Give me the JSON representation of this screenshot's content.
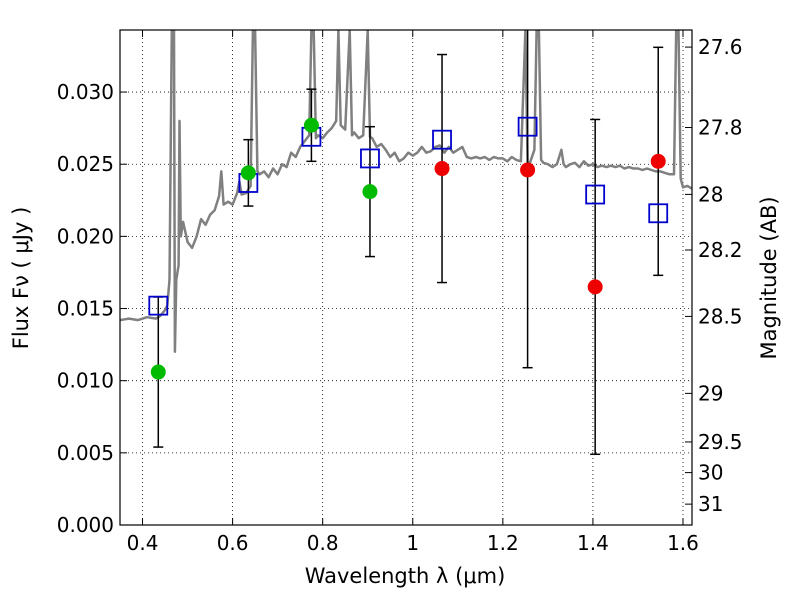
{
  "chart_data": {
    "type": "scatter",
    "title": "",
    "xlabel": "Wavelength  λ (μm)",
    "ylabel": "Flux  Fν  ( μJy )",
    "y2label": "Magnitude (AB)",
    "xlim": [
      0.35,
      1.62
    ],
    "ylim": [
      0.0,
      0.0343
    ],
    "grid": true,
    "legend": "none",
    "x_ticks": [
      {
        "value": 0.4,
        "label": "0.4"
      },
      {
        "value": 0.6,
        "label": "0.6"
      },
      {
        "value": 0.8,
        "label": "0.8"
      },
      {
        "value": 1.0,
        "label": "1"
      },
      {
        "value": 1.2,
        "label": "1.2"
      },
      {
        "value": 1.4,
        "label": "1.4"
      },
      {
        "value": 1.6,
        "label": "1.6"
      }
    ],
    "y_ticks": [
      {
        "value": 0.0,
        "label": "0.000"
      },
      {
        "value": 0.005,
        "label": "0.005"
      },
      {
        "value": 0.01,
        "label": "0.010"
      },
      {
        "value": 0.015,
        "label": "0.015"
      },
      {
        "value": 0.02,
        "label": "0.020"
      },
      {
        "value": 0.025,
        "label": "0.025"
      },
      {
        "value": 0.03,
        "label": "0.030"
      }
    ],
    "y2_ticks": [
      {
        "value": 27.6,
        "label": "27.6"
      },
      {
        "value": 27.8,
        "label": "27.8"
      },
      {
        "value": 28.0,
        "label": "28"
      },
      {
        "value": 28.2,
        "label": "28.2"
      },
      {
        "value": 28.5,
        "label": "28.5"
      },
      {
        "value": 29.0,
        "label": "29"
      },
      {
        "value": 29.5,
        "label": "29.5"
      },
      {
        "value": 30.0,
        "label": "30"
      },
      {
        "value": 31.0,
        "label": "31"
      }
    ],
    "colors": {
      "sed": "#808080",
      "model_points": "#0000cc",
      "green_points": "#00bb00",
      "red_points": "#ee0000",
      "errorbars": "#000000",
      "grid": "#000000"
    },
    "sed_curve": [
      [
        0.35,
        0.0142
      ],
      [
        0.37,
        0.0143
      ],
      [
        0.39,
        0.0142
      ],
      [
        0.41,
        0.0144
      ],
      [
        0.43,
        0.0143
      ],
      [
        0.44,
        0.0145
      ],
      [
        0.45,
        0.0149
      ],
      [
        0.455,
        0.0152
      ],
      [
        0.46,
        0.017
      ],
      [
        0.465,
        0.0343
      ],
      [
        0.47,
        0.0343
      ],
      [
        0.472,
        0.012
      ],
      [
        0.475,
        0.017
      ],
      [
        0.48,
        0.018
      ],
      [
        0.482,
        0.028
      ],
      [
        0.485,
        0.02
      ],
      [
        0.49,
        0.021
      ],
      [
        0.5,
        0.0196
      ],
      [
        0.51,
        0.0192
      ],
      [
        0.52,
        0.02
      ],
      [
        0.53,
        0.0212
      ],
      [
        0.54,
        0.0208
      ],
      [
        0.55,
        0.0215
      ],
      [
        0.56,
        0.0218
      ],
      [
        0.57,
        0.0228
      ],
      [
        0.575,
        0.0245
      ],
      [
        0.58,
        0.0222
      ],
      [
        0.59,
        0.0224
      ],
      [
        0.6,
        0.0222
      ],
      [
        0.61,
        0.023
      ],
      [
        0.615,
        0.0238
      ],
      [
        0.62,
        0.0229
      ],
      [
        0.63,
        0.023
      ],
      [
        0.64,
        0.0235
      ],
      [
        0.645,
        0.0343
      ],
      [
        0.65,
        0.0343
      ],
      [
        0.655,
        0.0245
      ],
      [
        0.66,
        0.0243
      ],
      [
        0.67,
        0.0245
      ],
      [
        0.68,
        0.0241
      ],
      [
        0.69,
        0.0247
      ],
      [
        0.7,
        0.0243
      ],
      [
        0.71,
        0.025
      ],
      [
        0.72,
        0.0248
      ],
      [
        0.73,
        0.0258
      ],
      [
        0.74,
        0.0255
      ],
      [
        0.75,
        0.0262
      ],
      [
        0.76,
        0.0266
      ],
      [
        0.77,
        0.027
      ],
      [
        0.775,
        0.0343
      ],
      [
        0.78,
        0.0343
      ],
      [
        0.785,
        0.0268
      ],
      [
        0.79,
        0.027
      ],
      [
        0.8,
        0.0268
      ],
      [
        0.81,
        0.0272
      ],
      [
        0.82,
        0.0275
      ],
      [
        0.83,
        0.028
      ],
      [
        0.835,
        0.0343
      ],
      [
        0.84,
        0.0277
      ],
      [
        0.85,
        0.0274
      ],
      [
        0.86,
        0.0343
      ],
      [
        0.865,
        0.027
      ],
      [
        0.87,
        0.0272
      ],
      [
        0.88,
        0.0268
      ],
      [
        0.89,
        0.027
      ],
      [
        0.9,
        0.0343
      ],
      [
        0.905,
        0.0269
      ],
      [
        0.91,
        0.0268
      ],
      [
        0.92,
        0.0262
      ],
      [
        0.93,
        0.0264
      ],
      [
        0.94,
        0.026
      ],
      [
        0.95,
        0.0255
      ],
      [
        0.96,
        0.0258
      ],
      [
        0.97,
        0.0252
      ],
      [
        0.98,
        0.0254
      ],
      [
        0.99,
        0.0258
      ],
      [
        1.0,
        0.0256
      ],
      [
        1.01,
        0.0258
      ],
      [
        1.02,
        0.0262
      ],
      [
        1.03,
        0.0258
      ],
      [
        1.04,
        0.0259
      ],
      [
        1.05,
        0.0262
      ],
      [
        1.06,
        0.0263
      ],
      [
        1.07,
        0.0258
      ],
      [
        1.08,
        0.0262
      ],
      [
        1.09,
        0.0258
      ],
      [
        1.1,
        0.026
      ],
      [
        1.11,
        0.0262
      ],
      [
        1.12,
        0.0255
      ],
      [
        1.13,
        0.0254
      ],
      [
        1.14,
        0.0255
      ],
      [
        1.15,
        0.0254
      ],
      [
        1.16,
        0.0255
      ],
      [
        1.17,
        0.0253
      ],
      [
        1.18,
        0.0255
      ],
      [
        1.19,
        0.0254
      ],
      [
        1.2,
        0.0254
      ],
      [
        1.21,
        0.0252
      ],
      [
        1.22,
        0.0255
      ],
      [
        1.23,
        0.0253
      ],
      [
        1.24,
        0.0252
      ],
      [
        1.25,
        0.0343
      ],
      [
        1.255,
        0.025
      ],
      [
        1.26,
        0.0251
      ],
      [
        1.27,
        0.026
      ],
      [
        1.275,
        0.0343
      ],
      [
        1.28,
        0.0343
      ],
      [
        1.285,
        0.0253
      ],
      [
        1.29,
        0.0251
      ],
      [
        1.3,
        0.025
      ],
      [
        1.31,
        0.0248
      ],
      [
        1.32,
        0.025
      ],
      [
        1.33,
        0.026
      ],
      [
        1.335,
        0.025
      ],
      [
        1.34,
        0.0248
      ],
      [
        1.35,
        0.025
      ],
      [
        1.36,
        0.0251
      ],
      [
        1.37,
        0.0248
      ],
      [
        1.38,
        0.0252
      ],
      [
        1.39,
        0.0249
      ],
      [
        1.4,
        0.025
      ],
      [
        1.41,
        0.0248
      ],
      [
        1.42,
        0.0249
      ],
      [
        1.43,
        0.0248
      ],
      [
        1.44,
        0.0249
      ],
      [
        1.45,
        0.0248
      ],
      [
        1.46,
        0.0249
      ],
      [
        1.47,
        0.0247
      ],
      [
        1.48,
        0.0248
      ],
      [
        1.49,
        0.0247
      ],
      [
        1.5,
        0.0247
      ],
      [
        1.51,
        0.0246
      ],
      [
        1.52,
        0.0247
      ],
      [
        1.53,
        0.0246
      ],
      [
        1.54,
        0.0245
      ],
      [
        1.55,
        0.0245
      ],
      [
        1.56,
        0.0244
      ],
      [
        1.57,
        0.0243
      ],
      [
        1.58,
        0.0243
      ],
      [
        1.585,
        0.0343
      ],
      [
        1.59,
        0.0343
      ],
      [
        1.595,
        0.024
      ],
      [
        1.6,
        0.0234
      ],
      [
        1.61,
        0.0235
      ],
      [
        1.62,
        0.0233
      ]
    ],
    "model_points": [
      {
        "x": 0.435,
        "y": 0.0152
      },
      {
        "x": 0.635,
        "y": 0.0237
      },
      {
        "x": 0.775,
        "y": 0.0269
      },
      {
        "x": 0.905,
        "y": 0.0254
      },
      {
        "x": 1.065,
        "y": 0.0267
      },
      {
        "x": 1.255,
        "y": 0.0276
      },
      {
        "x": 1.405,
        "y": 0.0229
      },
      {
        "x": 1.545,
        "y": 0.0216
      }
    ],
    "observed_points": [
      {
        "x": 0.435,
        "y": 0.0106,
        "yerr_low": 0.0054,
        "yerr_high": 0.0158,
        "color": "green"
      },
      {
        "x": 0.635,
        "y": 0.0244,
        "yerr_low": 0.0221,
        "yerr_high": 0.0267,
        "color": "green"
      },
      {
        "x": 0.775,
        "y": 0.0277,
        "yerr_low": 0.0252,
        "yerr_high": 0.0302,
        "color": "green"
      },
      {
        "x": 0.905,
        "y": 0.0231,
        "yerr_low": 0.0186,
        "yerr_high": 0.0276,
        "color": "green"
      },
      {
        "x": 1.065,
        "y": 0.0247,
        "yerr_low": 0.0168,
        "yerr_high": 0.0326,
        "color": "red"
      },
      {
        "x": 1.255,
        "y": 0.0246,
        "yerr_low": 0.0109,
        "yerr_high": 0.0343,
        "color": "red"
      },
      {
        "x": 1.405,
        "y": 0.0165,
        "yerr_low": 0.0049,
        "yerr_high": 0.0281,
        "color": "red"
      },
      {
        "x": 1.545,
        "y": 0.0252,
        "yerr_low": 0.0173,
        "yerr_high": 0.0331,
        "color": "red"
      }
    ]
  }
}
